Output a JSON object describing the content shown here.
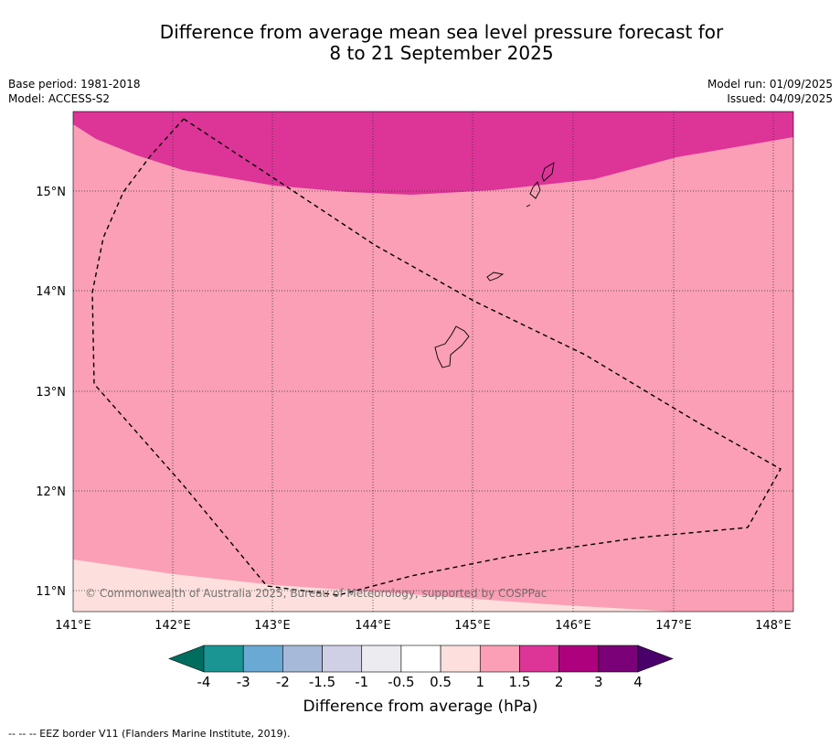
{
  "title": {
    "line1": "Difference from average mean sea level pressure forecast for",
    "line2": "8 to 21 September 2025"
  },
  "meta": {
    "base_period": "Base period: 1981-2018",
    "model": "Model: ACCESS-S2",
    "model_run": "Model run: 01/09/2025",
    "issued": "Issued: 04/09/2025"
  },
  "map": {
    "lon_labels": [
      "141°E",
      "142°E",
      "143°E",
      "144°E",
      "145°E",
      "146°E",
      "147°E",
      "148°E"
    ],
    "lat_labels": [
      "15°N",
      "14°N",
      "13°N",
      "12°N",
      "11°N"
    ],
    "copyright": "© Commonwealth of Australia 2025, Bureau of Meteorology, supported by COSPPac",
    "colors": {
      "band_0_5_to_1": "#fde0dd",
      "band_1_to_1_5": "#fa9fb5",
      "band_1_5_to_2": "#dd3497"
    }
  },
  "colorbar": {
    "tick_labels": [
      "-4",
      "-3",
      "-2",
      "-1.5",
      "-1",
      "-0.5",
      "0.5",
      "1",
      "1.5",
      "2",
      "3",
      "4"
    ],
    "label": "Difference from average (hPa)",
    "colors": [
      "#006d5f",
      "#1b9494",
      "#6aa9d3",
      "#a6b9d9",
      "#cfd0e6",
      "#ecebf0",
      "#ffffff",
      "#fde0dd",
      "#fa9fb5",
      "#dd3497",
      "#ae017e",
      "#7a0177",
      "#49006a"
    ]
  },
  "footer": {
    "legend": "--  --  -- EEZ border V11 (Flanders Marine Institute, 2019)."
  }
}
